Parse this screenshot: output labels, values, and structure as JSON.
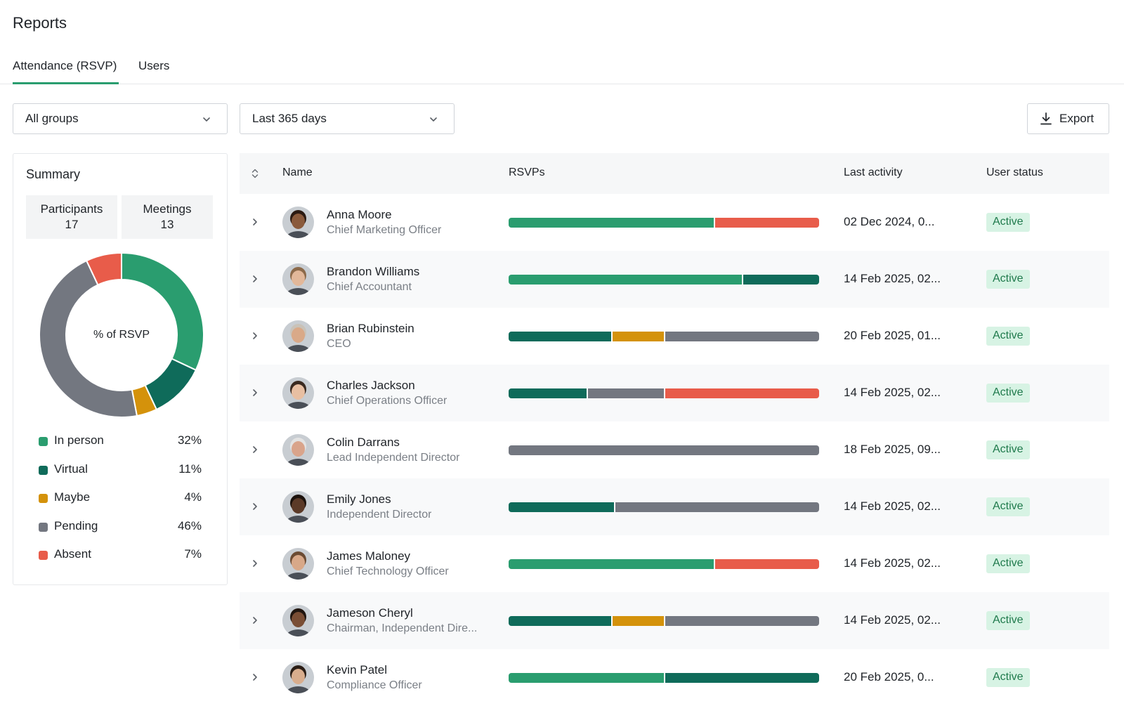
{
  "page": {
    "title": "Reports"
  },
  "tabs": [
    {
      "label": "Attendance (RSVP)",
      "active": true
    },
    {
      "label": "Users",
      "active": false
    }
  ],
  "filters": {
    "group": {
      "value": "All groups"
    },
    "period": {
      "value": "Last 365 days"
    }
  },
  "export": {
    "label": "Export",
    "icon": "download-icon"
  },
  "colors": {
    "in_person": "#2a9d6f",
    "virtual": "#0f6b5a",
    "maybe": "#d4920b",
    "pending": "#737780",
    "absent": "#e85c4a",
    "active_badge_bg": "#d7f3e4",
    "active_badge_text": "#1f7a4c",
    "tab_underline": "#2a9d6f"
  },
  "summary": {
    "title": "Summary",
    "stats": [
      {
        "label": "Participants",
        "value": "17"
      },
      {
        "label": "Meetings",
        "value": "13"
      }
    ],
    "donut_center": "% of RSVP",
    "legend": [
      {
        "key": "in_person",
        "label": "In person",
        "percent": "32%"
      },
      {
        "key": "virtual",
        "label": "Virtual",
        "percent": "11%"
      },
      {
        "key": "maybe",
        "label": "Maybe",
        "percent": "4%"
      },
      {
        "key": "pending",
        "label": "Pending",
        "percent": "46%"
      },
      {
        "key": "absent",
        "label": "Absent",
        "percent": "7%"
      }
    ]
  },
  "chart_data": {
    "type": "pie",
    "variant": "donut",
    "title": "",
    "center_label": "% of RSVP",
    "categories": [
      "In person",
      "Virtual",
      "Maybe",
      "Pending",
      "Absent"
    ],
    "values": [
      32,
      11,
      4,
      46,
      7
    ],
    "unit": "%",
    "legend_position": "bottom"
  },
  "table": {
    "columns": [
      "Name",
      "RSVPs",
      "Last activity",
      "User status"
    ],
    "rows": [
      {
        "name": "Anna Moore",
        "role": "Chief Marketing Officer",
        "last_activity": "02 Dec 2024, 0...",
        "status": "Active",
        "rsvp": [
          {
            "key": "in_person",
            "share": 0.66
          },
          {
            "key": "absent",
            "share": 0.34
          }
        ],
        "avatar": {
          "skin": "#8a5a3c",
          "hair": "#2b1a12"
        }
      },
      {
        "name": "Brandon Williams",
        "role": "Chief Accountant",
        "last_activity": "14 Feb 2025, 02...",
        "status": "Active",
        "rsvp": [
          {
            "key": "in_person",
            "share": 0.75
          },
          {
            "key": "virtual",
            "share": 0.25
          }
        ],
        "avatar": {
          "skin": "#e2b89a",
          "hair": "#8c6a4a"
        }
      },
      {
        "name": "Brian Rubinstein",
        "role": "CEO",
        "last_activity": "20 Feb 2025, 01...",
        "status": "Active",
        "rsvp": [
          {
            "key": "virtual",
            "share": 0.33
          },
          {
            "key": "maybe",
            "share": 0.17
          },
          {
            "key": "pending",
            "share": 0.5
          }
        ],
        "avatar": {
          "skin": "#d9a988",
          "hair": "#c9c2b8"
        }
      },
      {
        "name": "Charles Jackson",
        "role": "Chief Operations Officer",
        "last_activity": "14 Feb 2025, 02...",
        "status": "Active",
        "rsvp": [
          {
            "key": "virtual",
            "share": 0.25
          },
          {
            "key": "pending",
            "share": 0.25
          },
          {
            "key": "absent",
            "share": 0.5
          }
        ],
        "avatar": {
          "skin": "#e8bfa2",
          "hair": "#3a2a20"
        }
      },
      {
        "name": "Colin Darrans",
        "role": "Lead Independent Director",
        "last_activity": "18 Feb 2025, 09...",
        "status": "Active",
        "rsvp": [
          {
            "key": "pending",
            "share": 1.0
          }
        ],
        "avatar": {
          "skin": "#d9a48b",
          "hair": "#e3e3e3"
        }
      },
      {
        "name": "Emily Jones",
        "role": "Independent Director",
        "last_activity": "14 Feb 2025, 02...",
        "status": "Active",
        "rsvp": [
          {
            "key": "virtual",
            "share": 0.34
          },
          {
            "key": "pending",
            "share": 0.66
          }
        ],
        "avatar": {
          "skin": "#5b3a28",
          "hair": "#1c120c"
        }
      },
      {
        "name": "James Maloney",
        "role": "Chief Technology Officer",
        "last_activity": "14 Feb 2025, 02...",
        "status": "Active",
        "rsvp": [
          {
            "key": "in_person",
            "share": 0.66
          },
          {
            "key": "absent",
            "share": 0.34
          }
        ],
        "avatar": {
          "skin": "#d8a888",
          "hair": "#6b4b33"
        }
      },
      {
        "name": "Jameson Cheryl",
        "role": "Chairman, Independent Dire...",
        "last_activity": "14 Feb 2025, 02...",
        "status": "Active",
        "rsvp": [
          {
            "key": "virtual",
            "share": 0.33
          },
          {
            "key": "maybe",
            "share": 0.17
          },
          {
            "key": "pending",
            "share": 0.5
          }
        ],
        "avatar": {
          "skin": "#7a4e35",
          "hair": "#20150f"
        }
      },
      {
        "name": "Kevin Patel",
        "role": "Compliance Officer",
        "last_activity": "20 Feb 2025, 0...",
        "status": "Active",
        "rsvp": [
          {
            "key": "in_person",
            "share": 0.5
          },
          {
            "key": "virtual",
            "share": 0.5
          }
        ],
        "avatar": {
          "skin": "#d8ad8d",
          "hair": "#2a1d15"
        }
      }
    ]
  }
}
